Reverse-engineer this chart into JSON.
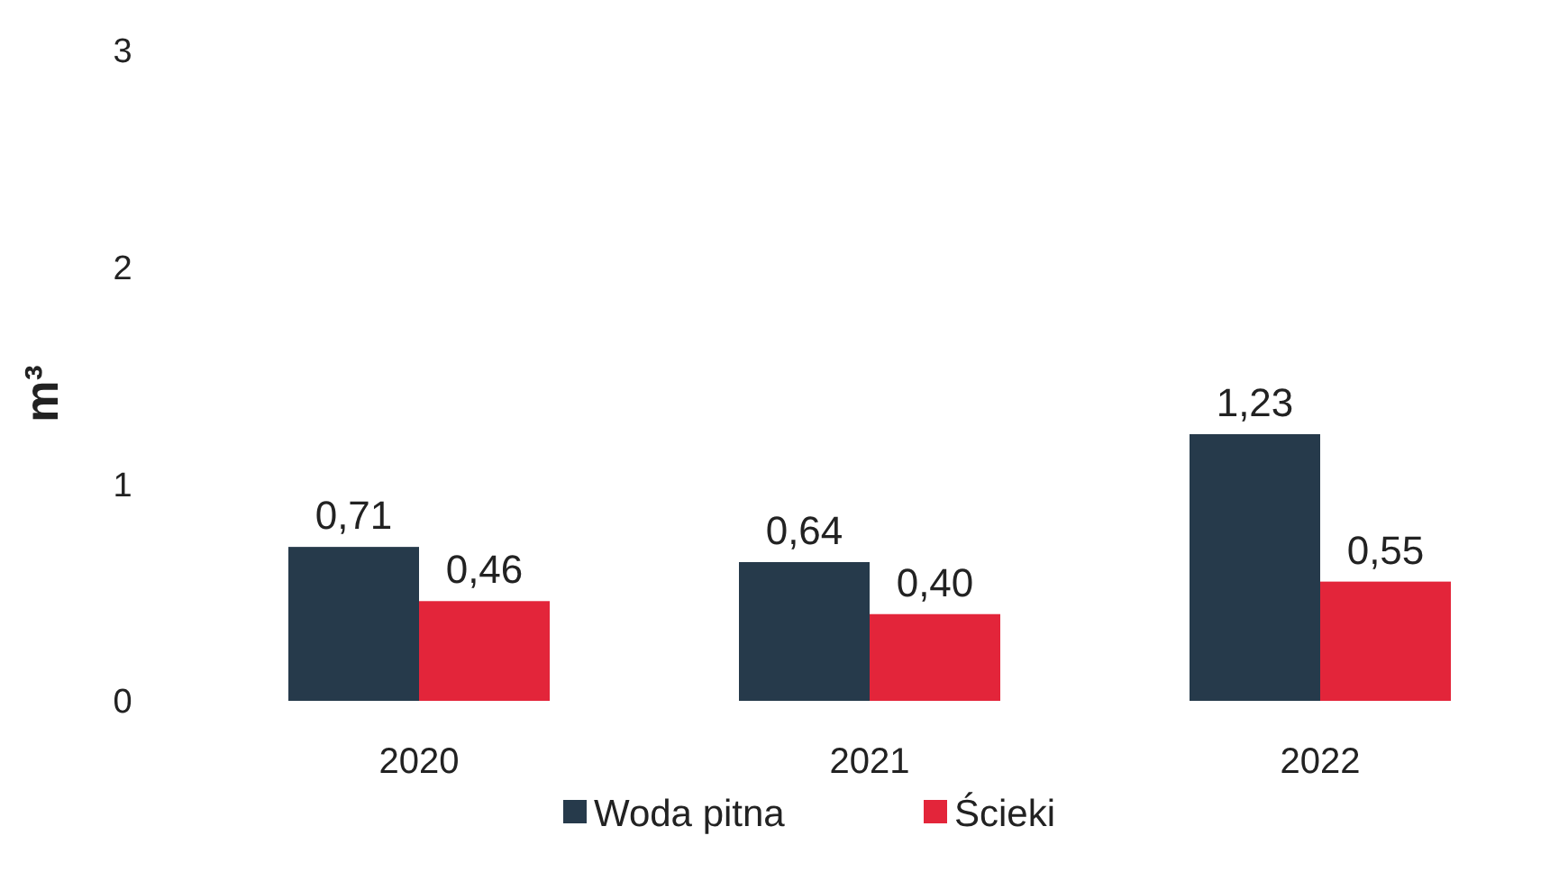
{
  "chart_data": {
    "type": "bar",
    "ylabel": "m³",
    "categories": [
      "2020",
      "2021",
      "2022"
    ],
    "series": [
      {
        "name": "Woda pitna",
        "color": "#263a4b",
        "values": [
          0.71,
          0.64,
          1.23
        ],
        "value_labels": [
          "0,71",
          "0,64",
          "1,23"
        ]
      },
      {
        "name": "Ścieki",
        "color": "#e3253a",
        "values": [
          0.46,
          0.4,
          0.55
        ],
        "value_labels": [
          "0,46",
          "0,40",
          "0,55"
        ]
      }
    ],
    "ylim": [
      0,
      3
    ],
    "yticks": [
      0,
      1,
      2,
      3
    ],
    "grid": false,
    "legend": "bottom"
  }
}
